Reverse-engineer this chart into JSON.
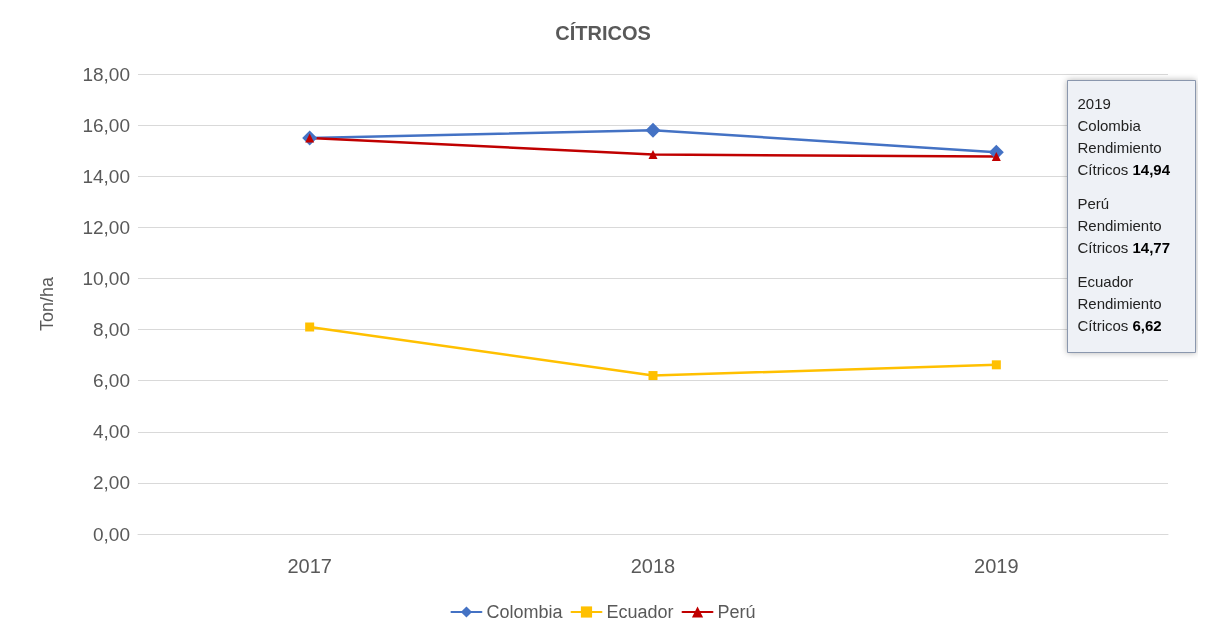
{
  "chart_data": {
    "type": "line",
    "title": "CÍTRICOS",
    "ylabel": "Ton/ha",
    "categories": [
      "2017",
      "2018",
      "2019"
    ],
    "series": [
      {
        "name": "Colombia",
        "color": "#4472c4",
        "marker": "diamond",
        "values": [
          15.5,
          15.8,
          14.94
        ]
      },
      {
        "name": "Ecuador",
        "color": "#ffc000",
        "marker": "square",
        "values": [
          8.1,
          6.2,
          6.62
        ]
      },
      {
        "name": "Perú",
        "color": "#c00000",
        "marker": "triangle",
        "values": [
          15.5,
          14.85,
          14.77
        ]
      }
    ],
    "ylim": [
      0,
      18
    ],
    "yticks": [
      {
        "value": 0,
        "label": "0,00"
      },
      {
        "value": 2,
        "label": "2,00"
      },
      {
        "value": 4,
        "label": "4,00"
      },
      {
        "value": 6,
        "label": "6,00"
      },
      {
        "value": 8,
        "label": "8,00"
      },
      {
        "value": 10,
        "label": "10,00"
      },
      {
        "value": 12,
        "label": "12,00"
      },
      {
        "value": 14,
        "label": "14,00"
      },
      {
        "value": 16,
        "label": "16,00"
      },
      {
        "value": 18,
        "label": "18,00"
      }
    ],
    "grid": "y",
    "legend": "bottom",
    "annotations": [
      "2019",
      "Colombia\nRendimiento\nCítricos 14,94",
      "Perú\nRendimiento\nCítricos 14,77",
      "Ecuador\nRendimiento\nCítricos 6,62"
    ]
  }
}
